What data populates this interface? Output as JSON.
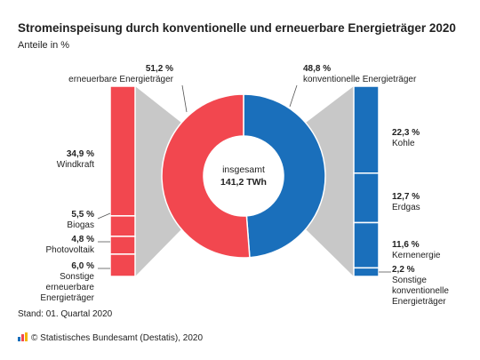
{
  "header": {
    "title": "Stromeinspeisung durch konventionelle und erneuerbare Energieträger 2020",
    "subtitle": "Anteile in %"
  },
  "footer": {
    "stand": "Stand: 01. Quartal 2020",
    "source": "© Statistisches Bundesamt (Destatis), 2020"
  },
  "colors": {
    "red": "#f2474f",
    "blue": "#1a6fbb",
    "grey": "#c8c8c8"
  },
  "chart_data": {
    "type": "pie",
    "variant": "donut-with-breakdown-bars",
    "center_label": "insgesamt",
    "center_value": "141,2 TWh",
    "main": [
      {
        "name": "erneuerbare Energieträger",
        "value": 51.2,
        "label": "51,2 %",
        "color": "#f2474f"
      },
      {
        "name": "konventionelle Energieträger",
        "value": 48.8,
        "label": "48,8 %",
        "color": "#1a6fbb"
      }
    ],
    "breakdown_left": [
      {
        "name": "Windkraft",
        "value": 34.9,
        "label": "34,9 %"
      },
      {
        "name": "Biogas",
        "value": 5.5,
        "label": "5,5 %"
      },
      {
        "name": "Photovoltaik",
        "value": 4.8,
        "label": "4,8 %"
      },
      {
        "name": "Sonstige erneuerbare Energieträger",
        "value": 6.0,
        "label": "6,0 %"
      }
    ],
    "breakdown_right": [
      {
        "name": "Kohle",
        "value": 22.3,
        "label": "22,3 %"
      },
      {
        "name": "Erdgas",
        "value": 12.7,
        "label": "12,7 %"
      },
      {
        "name": "Kernenergie",
        "value": 11.6,
        "label": "11,6 %"
      },
      {
        "name": "Sonstige konventionelle Energieträger",
        "value": 2.2,
        "label": "2,2 %"
      }
    ]
  }
}
